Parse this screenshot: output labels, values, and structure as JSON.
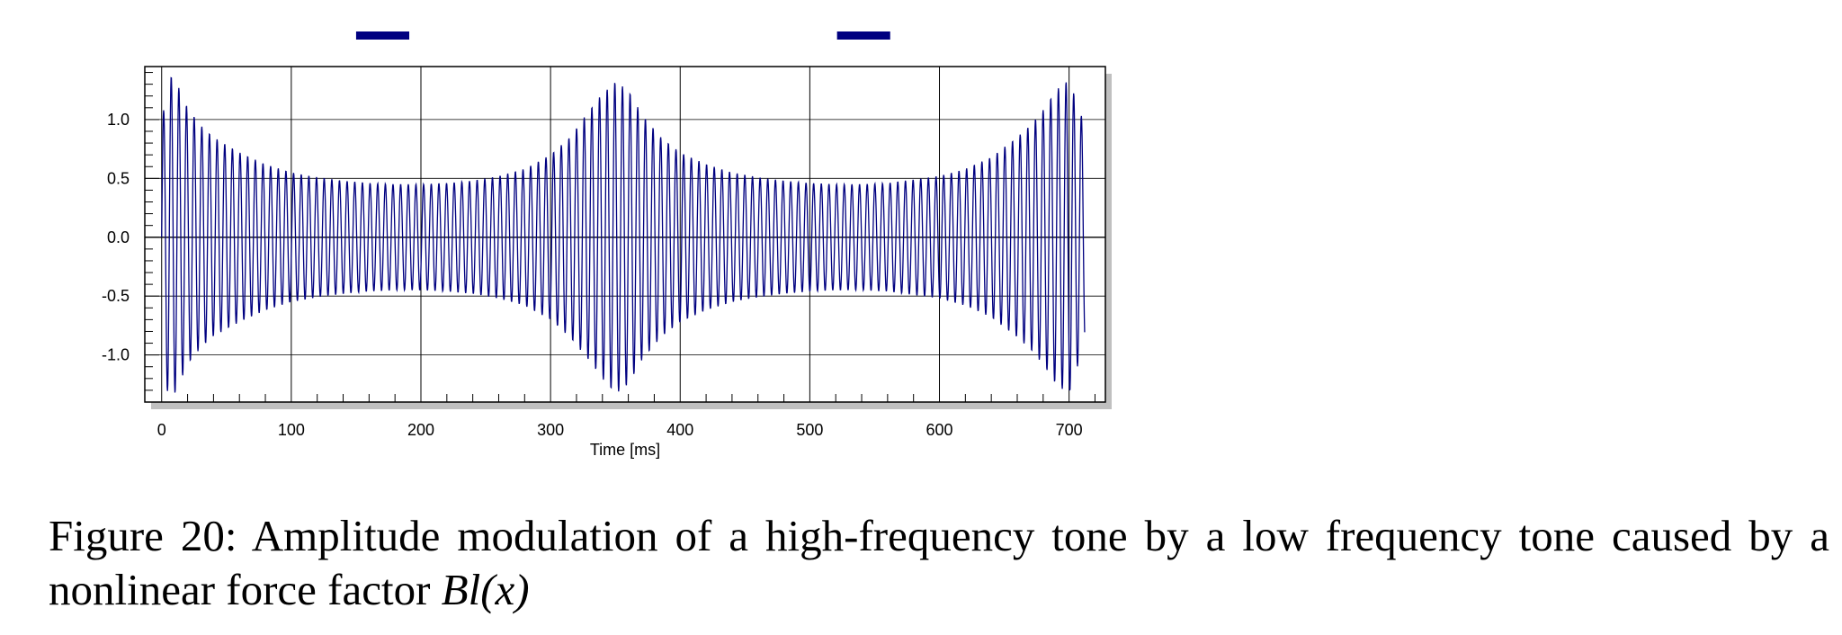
{
  "chart_data": {
    "type": "line",
    "xlabel": "Time [ms]",
    "ylabel": "",
    "xlim": [
      -13,
      728
    ],
    "ylim": [
      -1.4,
      1.45
    ],
    "xticks": [
      0,
      100,
      200,
      300,
      400,
      500,
      600,
      700
    ],
    "yticks": [
      -1.0,
      -0.5,
      0.0,
      0.5,
      1.0
    ],
    "xtick_labels": [
      "0",
      "100",
      "200",
      "300",
      "400",
      "500",
      "600",
      "700"
    ],
    "ytick_labels": [
      "-1.0",
      "-0.5",
      "0.0",
      "0.5",
      "1.0"
    ],
    "grid": true,
    "series": [
      {
        "color": "#000080",
        "carrier_period_ms": 5.9,
        "x_end": 712,
        "envelope": {
          "x": [
            0,
            5,
            10,
            20,
            30,
            40,
            60,
            80,
            100,
            120,
            140,
            160,
            180,
            200,
            220,
            240,
            260,
            280,
            300,
            315,
            330,
            340,
            350,
            360,
            370,
            385,
            400,
            420,
            440,
            460,
            480,
            500,
            520,
            540,
            560,
            580,
            600,
            620,
            640,
            660,
            670,
            680,
            690,
            700,
            712
          ],
          "upper": [
            0.95,
            1.38,
            1.35,
            1.1,
            0.95,
            0.85,
            0.72,
            0.62,
            0.55,
            0.51,
            0.48,
            0.46,
            0.45,
            0.45,
            0.46,
            0.48,
            0.52,
            0.58,
            0.7,
            0.85,
            1.08,
            1.22,
            1.32,
            1.25,
            1.05,
            0.85,
            0.72,
            0.62,
            0.55,
            0.51,
            0.48,
            0.46,
            0.45,
            0.45,
            0.46,
            0.49,
            0.52,
            0.58,
            0.68,
            0.85,
            0.95,
            1.08,
            1.25,
            1.34,
            0.95
          ],
          "lower": [
            -0.95,
            -1.35,
            -1.33,
            -1.08,
            -0.94,
            -0.84,
            -0.72,
            -0.62,
            -0.55,
            -0.51,
            -0.48,
            -0.46,
            -0.45,
            -0.45,
            -0.46,
            -0.48,
            -0.52,
            -0.58,
            -0.7,
            -0.85,
            -1.05,
            -1.2,
            -1.33,
            -1.25,
            -1.05,
            -0.85,
            -0.72,
            -0.62,
            -0.55,
            -0.51,
            -0.48,
            -0.46,
            -0.45,
            -0.45,
            -0.46,
            -0.49,
            -0.52,
            -0.58,
            -0.68,
            -0.85,
            -0.95,
            -1.08,
            -1.25,
            -1.33,
            -0.9
          ]
        }
      }
    ],
    "marker_bars": [
      {
        "x_start": 150,
        "x_end": 191,
        "color": "#000080"
      },
      {
        "x_start": 521,
        "x_end": 562,
        "color": "#000080"
      }
    ]
  },
  "caption": {
    "text": "Figure 20: Amplitude modulation of a high-frequency tone by a low frequency tone caused by a nonlinear force factor ",
    "math": "Bl(x)"
  },
  "colors": {
    "signal": "#000080",
    "grid": "#000000",
    "shadow": "#c0c0c0"
  }
}
